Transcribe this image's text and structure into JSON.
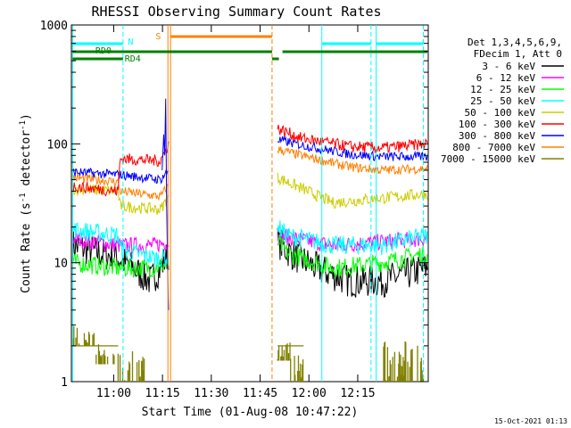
{
  "chart_data": {
    "type": "line",
    "title": "RHESSI Observing Summary Count Rates",
    "xlabel": "Start Time (01-Aug-08 10:47:22)",
    "ylabel_main": "Count Rate (s",
    "ylabel_sup": "-1",
    "ylabel_tail": " detector",
    "ylabel_close": ")",
    "timestamp": "15-Oct-2021 01:13",
    "yscale": "log",
    "ylim": [
      1,
      1000
    ],
    "xlim_minutes": [
      -0.37,
      109.3
    ],
    "x_ticks": [
      {
        "label": "11:00",
        "t": 12.63
      },
      {
        "label": "11:15",
        "t": 27.63
      },
      {
        "label": "11:30",
        "t": 42.63
      },
      {
        "label": "11:45",
        "t": 57.63
      },
      {
        "label": "12:00",
        "t": 72.63
      },
      {
        "label": "12:15",
        "t": 87.63
      }
    ],
    "y_ticks": [
      {
        "label": "1",
        "v": 1
      },
      {
        "label": "10",
        "v": 10
      },
      {
        "label": "100",
        "v": 100
      },
      {
        "label": "1000",
        "v": 1000
      }
    ],
    "legend": {
      "header": [
        "Det 1,3,4,5,6,9,",
        "FDecim 1, Att 0"
      ],
      "placement": "right"
    },
    "series": [
      {
        "name": "3 - 6 keV",
        "color": "#000000",
        "noise": 0.14,
        "pts": [
          [
            0,
            14
          ],
          [
            14,
            11
          ],
          [
            24,
            7
          ],
          [
            27,
            9
          ],
          [
            29.5,
            12
          ],
          [
            63,
            15
          ],
          [
            67,
            12
          ],
          [
            75,
            9
          ],
          [
            85,
            7
          ],
          [
            95,
            7
          ],
          [
            109,
            9
          ]
        ]
      },
      {
        "name": "6 - 12 keV",
        "color": "#ff00ff",
        "noise": 0.07,
        "pts": [
          [
            0,
            16
          ],
          [
            14,
            14
          ],
          [
            14.6,
            14
          ],
          [
            25,
            14
          ],
          [
            29.5,
            15
          ],
          [
            63,
            17
          ],
          [
            68,
            16
          ],
          [
            80,
            14
          ],
          [
            95,
            15
          ],
          [
            109,
            16
          ]
        ]
      },
      {
        "name": "12 - 25 keV",
        "color": "#00ff00",
        "noise": 0.08,
        "pts": [
          [
            0,
            10
          ],
          [
            14,
            9
          ],
          [
            25,
            9
          ],
          [
            29.5,
            10
          ],
          [
            63,
            15
          ],
          [
            66,
            12
          ],
          [
            80,
            9
          ],
          [
            95,
            10
          ],
          [
            109,
            12
          ]
        ]
      },
      {
        "name": "25 - 50 keV",
        "color": "#00ffff",
        "noise": 0.08,
        "pts": [
          [
            0,
            19
          ],
          [
            14,
            17
          ],
          [
            14.6,
            13
          ],
          [
            25,
            11
          ],
          [
            29.5,
            11
          ],
          [
            63,
            20
          ],
          [
            66,
            17
          ],
          [
            80,
            14
          ],
          [
            95,
            14
          ],
          [
            109,
            17
          ]
        ]
      },
      {
        "name": "50 - 100 keV",
        "color": "#cccc00",
        "noise": 0.05,
        "pts": [
          [
            0,
            42
          ],
          [
            14,
            40
          ],
          [
            14.6,
            30
          ],
          [
            27,
            28
          ],
          [
            29.5,
            36
          ],
          [
            63,
            52
          ],
          [
            64.5,
            50
          ],
          [
            80,
            32
          ],
          [
            95,
            35
          ],
          [
            109,
            38
          ]
        ]
      },
      {
        "name": "100 - 300 keV",
        "color": "#ff0000",
        "noise": 0.05,
        "pts": [
          [
            0,
            44
          ],
          [
            14,
            40
          ],
          [
            14.6,
            75
          ],
          [
            27,
            72
          ],
          [
            29.5,
            100
          ],
          [
            63,
            135
          ],
          [
            70,
            112
          ],
          [
            85,
            95
          ],
          [
            95,
            92
          ],
          [
            109,
            100
          ]
        ]
      },
      {
        "name": "300 - 800 keV",
        "color": "#0000ff",
        "noise": 0.04,
        "pts": [
          [
            0,
            58
          ],
          [
            14,
            55
          ],
          [
            14.6,
            55
          ],
          [
            27,
            50
          ],
          [
            29.5,
            60
          ],
          [
            63,
            108
          ],
          [
            70,
            98
          ],
          [
            85,
            82
          ],
          [
            95,
            78
          ],
          [
            109,
            78
          ]
        ]
      },
      {
        "name": "800 - 7000 keV",
        "color": "#ff8000",
        "noise": 0.04,
        "pts": [
          [
            0,
            52
          ],
          [
            14,
            48
          ],
          [
            14.6,
            40
          ],
          [
            27,
            36
          ],
          [
            29.5,
            45
          ],
          [
            63,
            90
          ],
          [
            70,
            80
          ],
          [
            85,
            64
          ],
          [
            95,
            60
          ],
          [
            109,
            62
          ]
        ]
      },
      {
        "name": "7000 - 15000 keV",
        "color": "#808000",
        "noise": 0,
        "pts": []
      }
    ],
    "flag_labels": {
      "n": "N",
      "s": "S",
      "rd0": "RD0",
      "rd4": "RD4"
    }
  }
}
